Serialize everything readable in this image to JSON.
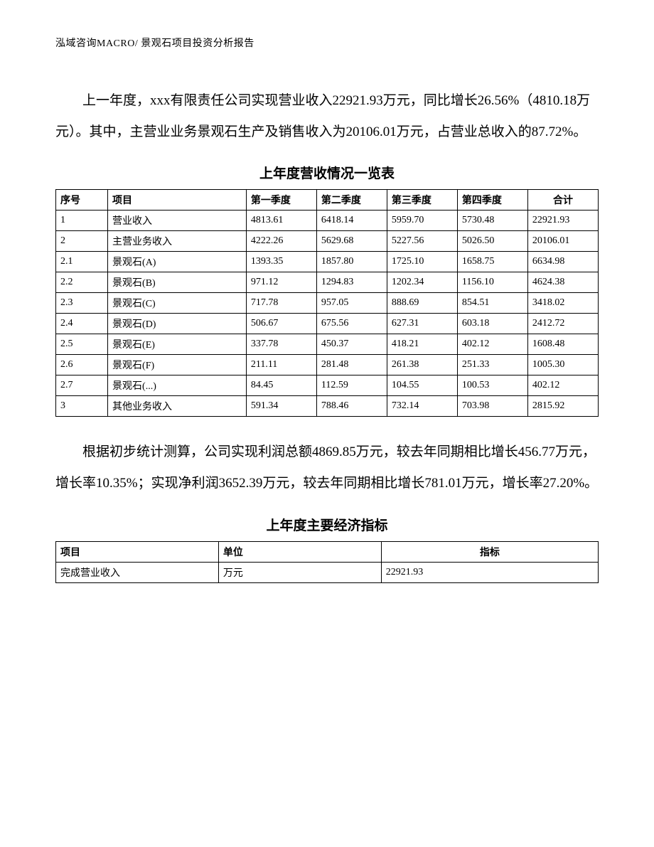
{
  "header": "泓域咨询MACRO/   景观石项目投资分析报告",
  "para1": "上一年度，xxx有限责任公司实现营业收入22921.93万元，同比增长26.56%（4810.18万元）。其中，主营业业务景观石生产及销售收入为20106.01万元，占营业总收入的87.72%。",
  "table1": {
    "title": "上年度营收情况一览表",
    "columns": [
      "序号",
      "项目",
      "第一季度",
      "第二季度",
      "第三季度",
      "第四季度",
      "合计"
    ],
    "rows": [
      [
        "1",
        "营业收入",
        "4813.61",
        "6418.14",
        "5959.70",
        "5730.48",
        "22921.93"
      ],
      [
        "2",
        "主营业务收入",
        "4222.26",
        "5629.68",
        "5227.56",
        "5026.50",
        "20106.01"
      ],
      [
        "2.1",
        "景观石(A)",
        "1393.35",
        "1857.80",
        "1725.10",
        "1658.75",
        "6634.98"
      ],
      [
        "2.2",
        "景观石(B)",
        "971.12",
        "1294.83",
        "1202.34",
        "1156.10",
        "4624.38"
      ],
      [
        "2.3",
        "景观石(C)",
        "717.78",
        "957.05",
        "888.69",
        "854.51",
        "3418.02"
      ],
      [
        "2.4",
        "景观石(D)",
        "506.67",
        "675.56",
        "627.31",
        "603.18",
        "2412.72"
      ],
      [
        "2.5",
        "景观石(E)",
        "337.78",
        "450.37",
        "418.21",
        "402.12",
        "1608.48"
      ],
      [
        "2.6",
        "景观石(F)",
        "211.11",
        "281.48",
        "261.38",
        "251.33",
        "1005.30"
      ],
      [
        "2.7",
        "景观石(...)",
        "84.45",
        "112.59",
        "104.55",
        "100.53",
        "402.12"
      ],
      [
        "3",
        "其他业务收入",
        "591.34",
        "788.46",
        "732.14",
        "703.98",
        "2815.92"
      ]
    ]
  },
  "para2": "根据初步统计测算，公司实现利润总额4869.85万元，较去年同期相比增长456.77万元，增长率10.35%；实现净利润3652.39万元，较去年同期相比增长781.01万元，增长率27.20%。",
  "table2": {
    "title": "上年度主要经济指标",
    "columns": [
      "项目",
      "单位",
      "指标"
    ],
    "rows": [
      [
        "完成营业收入",
        "万元",
        "22921.93"
      ]
    ]
  }
}
